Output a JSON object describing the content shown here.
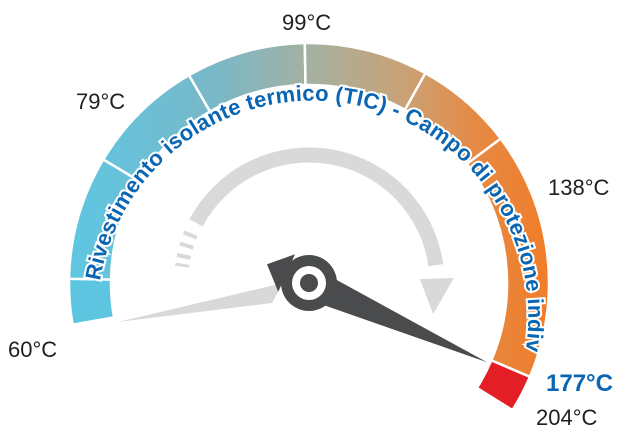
{
  "gauge": {
    "title": "Rivestimento isolante termico (TIC) - Campo di protezione individuale",
    "labels": {
      "min": "60°C",
      "t79": "79°C",
      "t99": "99°C",
      "t138": "138°C",
      "max": "204°C",
      "current": "177°C"
    },
    "reading_celsius": 177,
    "colors": {
      "cool": "#5ec5e0",
      "neutral": "#aab5a0",
      "warm": "#f07d2a",
      "danger": "#e31e24",
      "needle": "#4a4b4d",
      "arrow": "#d9d9d9",
      "accent_text": "#0a66b2"
    }
  }
}
